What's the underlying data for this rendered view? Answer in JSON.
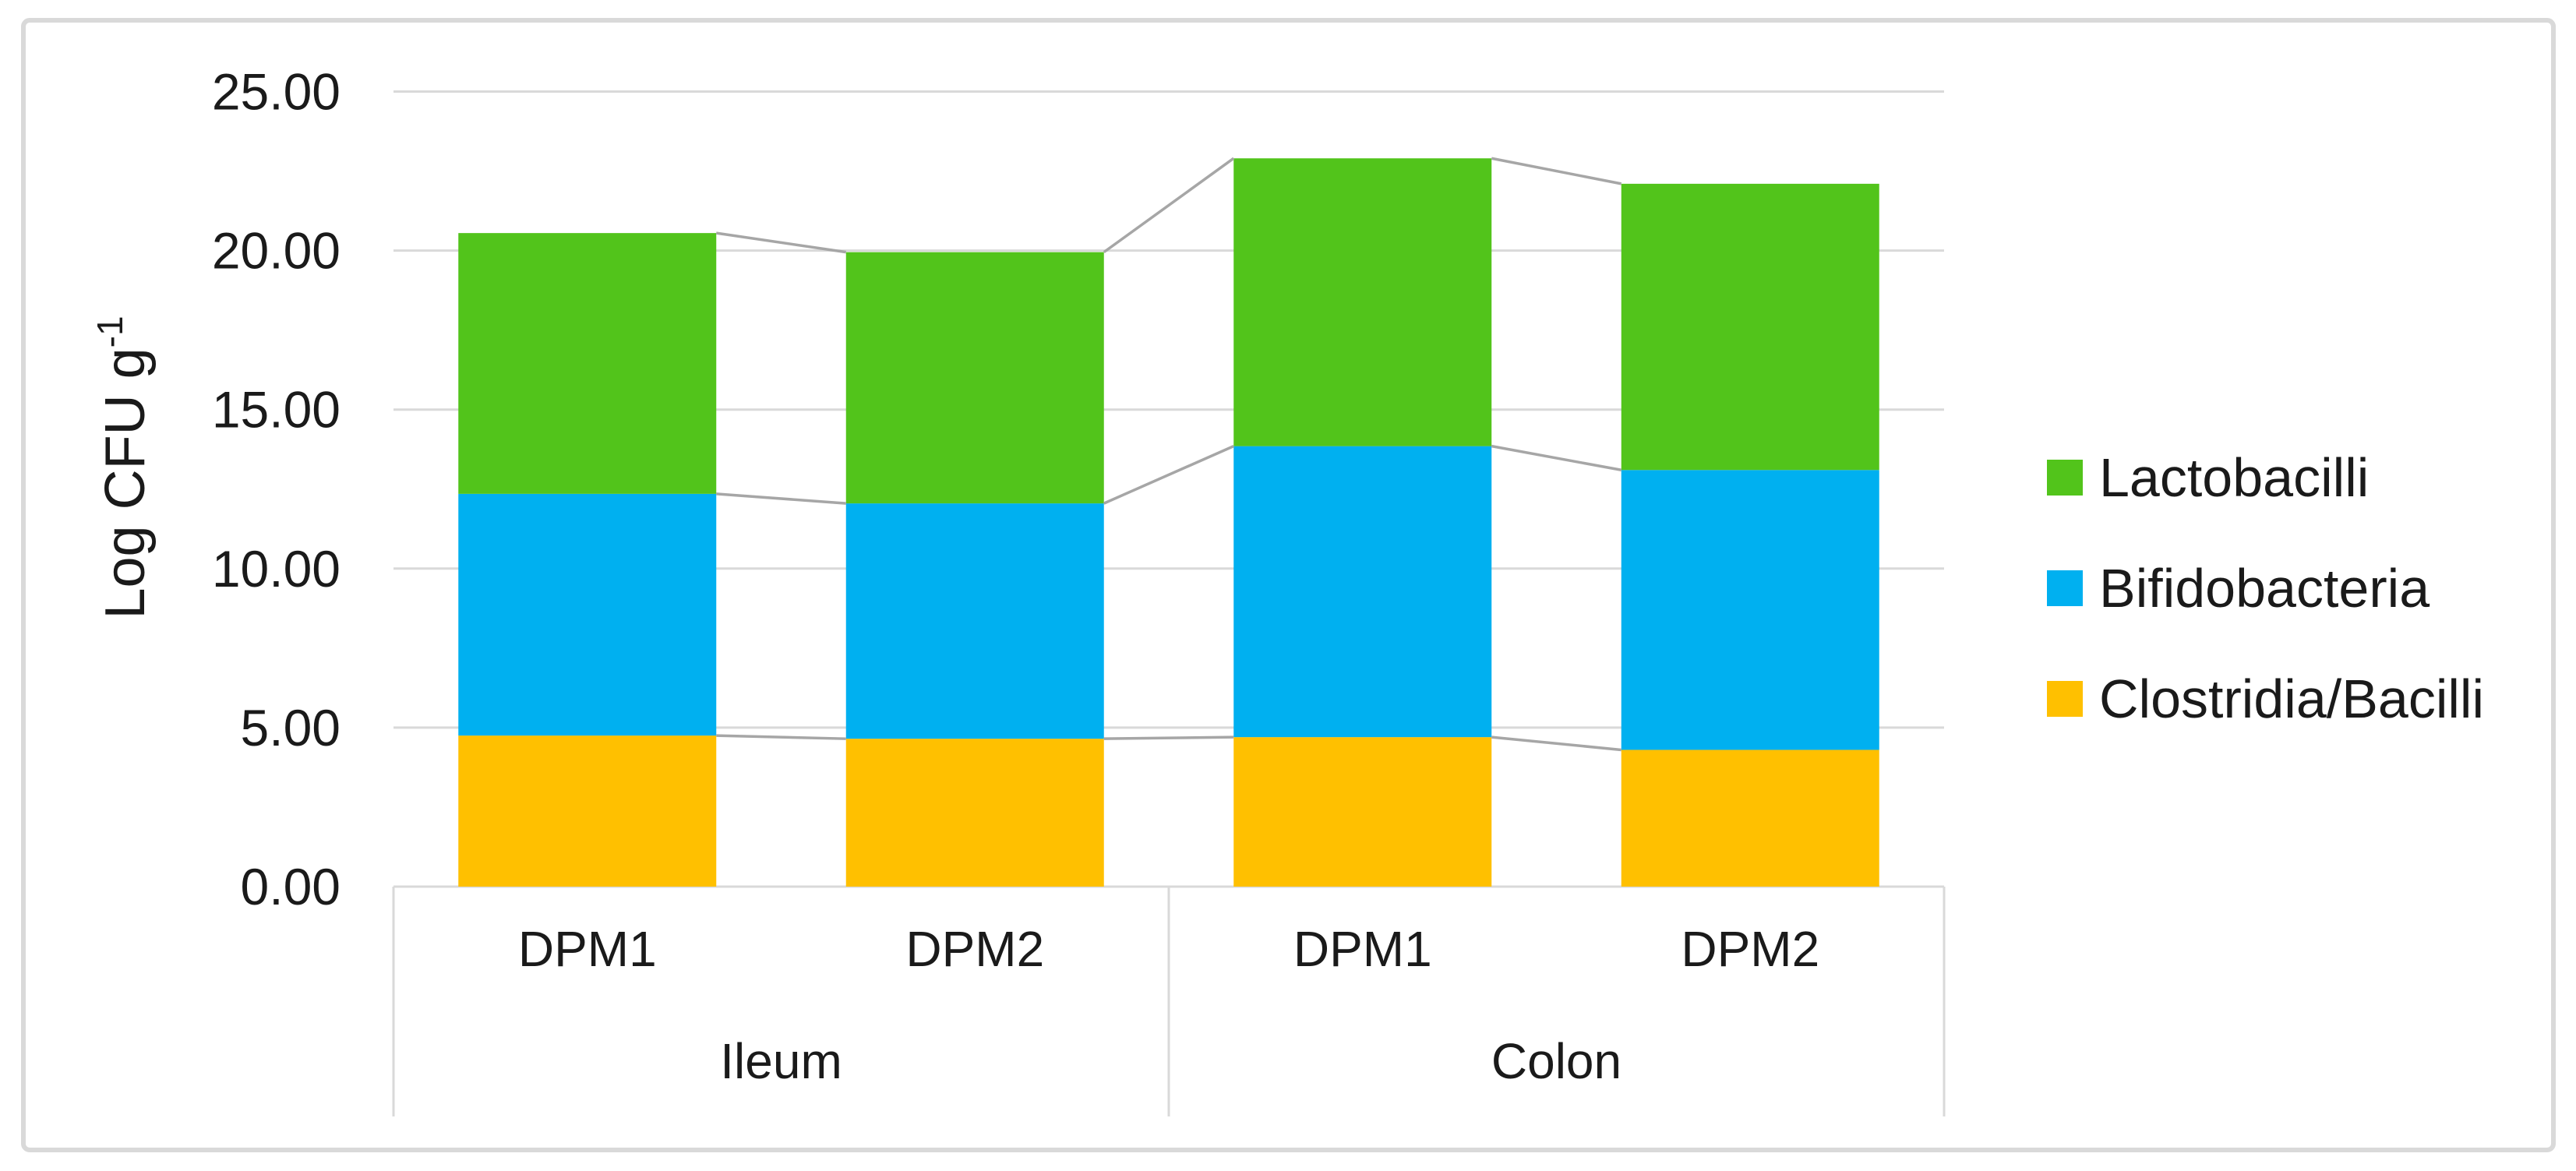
{
  "figure": {
    "background": "#ffffff",
    "border_color": "#d9d9d9"
  },
  "colors": {
    "gridline": "#d9d9d9",
    "axis_box_line": "#d9d9d9",
    "connector_line": "#a6a6a6",
    "text": "#1a1a1a"
  },
  "y_axis": {
    "title_main": "Log CFU g",
    "title_superscript": "-1",
    "tick_labels": [
      "25.00",
      "20.00",
      "15.00",
      "10.00",
      "5.00",
      "0.00"
    ],
    "tick_values": [
      25,
      20,
      15,
      10,
      5,
      0
    ]
  },
  "x_axis": {
    "groups": [
      {
        "label": "Ileum",
        "categories": [
          "DPM1",
          "DPM2"
        ]
      },
      {
        "label": "Colon",
        "categories": [
          "DPM1",
          "DPM2"
        ]
      }
    ]
  },
  "legend": {
    "position": "right",
    "items": [
      {
        "label": "Lactobacilli",
        "color": "#52c41b"
      },
      {
        "label": "Bifidobacteria",
        "color": "#00b0f0"
      },
      {
        "label": "Clostridia/Bacilli",
        "color": "#ffc000"
      }
    ]
  },
  "chart_data": {
    "type": "bar",
    "stacked": true,
    "title": "",
    "xlabel": "",
    "ylabel": "Log CFU g^-1",
    "ylim": [
      0,
      25
    ],
    "ytick_step": 5,
    "grid": true,
    "legend_position": "right",
    "series_connector_lines": true,
    "categories": [
      "Ileum DPM1",
      "Ileum DPM2",
      "Colon DPM1",
      "Colon DPM2"
    ],
    "category_labels": [
      "DPM1",
      "DPM2",
      "DPM1",
      "DPM2"
    ],
    "group_labels": [
      "Ileum",
      "Colon"
    ],
    "series": [
      {
        "name": "Clostridia/Bacilli",
        "color": "#ffc000",
        "values": [
          4.75,
          4.65,
          4.7,
          4.3
        ]
      },
      {
        "name": "Bifidobacteria",
        "color": "#00b0f0",
        "values": [
          7.6,
          7.4,
          9.15,
          8.8
        ]
      },
      {
        "name": "Lactobacilli",
        "color": "#52c41b",
        "values": [
          8.2,
          7.9,
          9.05,
          9.0
        ]
      }
    ],
    "cumulative_tops": {
      "Clostridia/Bacilli": [
        4.75,
        4.65,
        4.7,
        4.3
      ],
      "Bifidobacteria": [
        12.35,
        12.05,
        13.85,
        13.1
      ],
      "Lactobacilli": [
        20.55,
        19.95,
        22.9,
        22.1
      ]
    }
  }
}
